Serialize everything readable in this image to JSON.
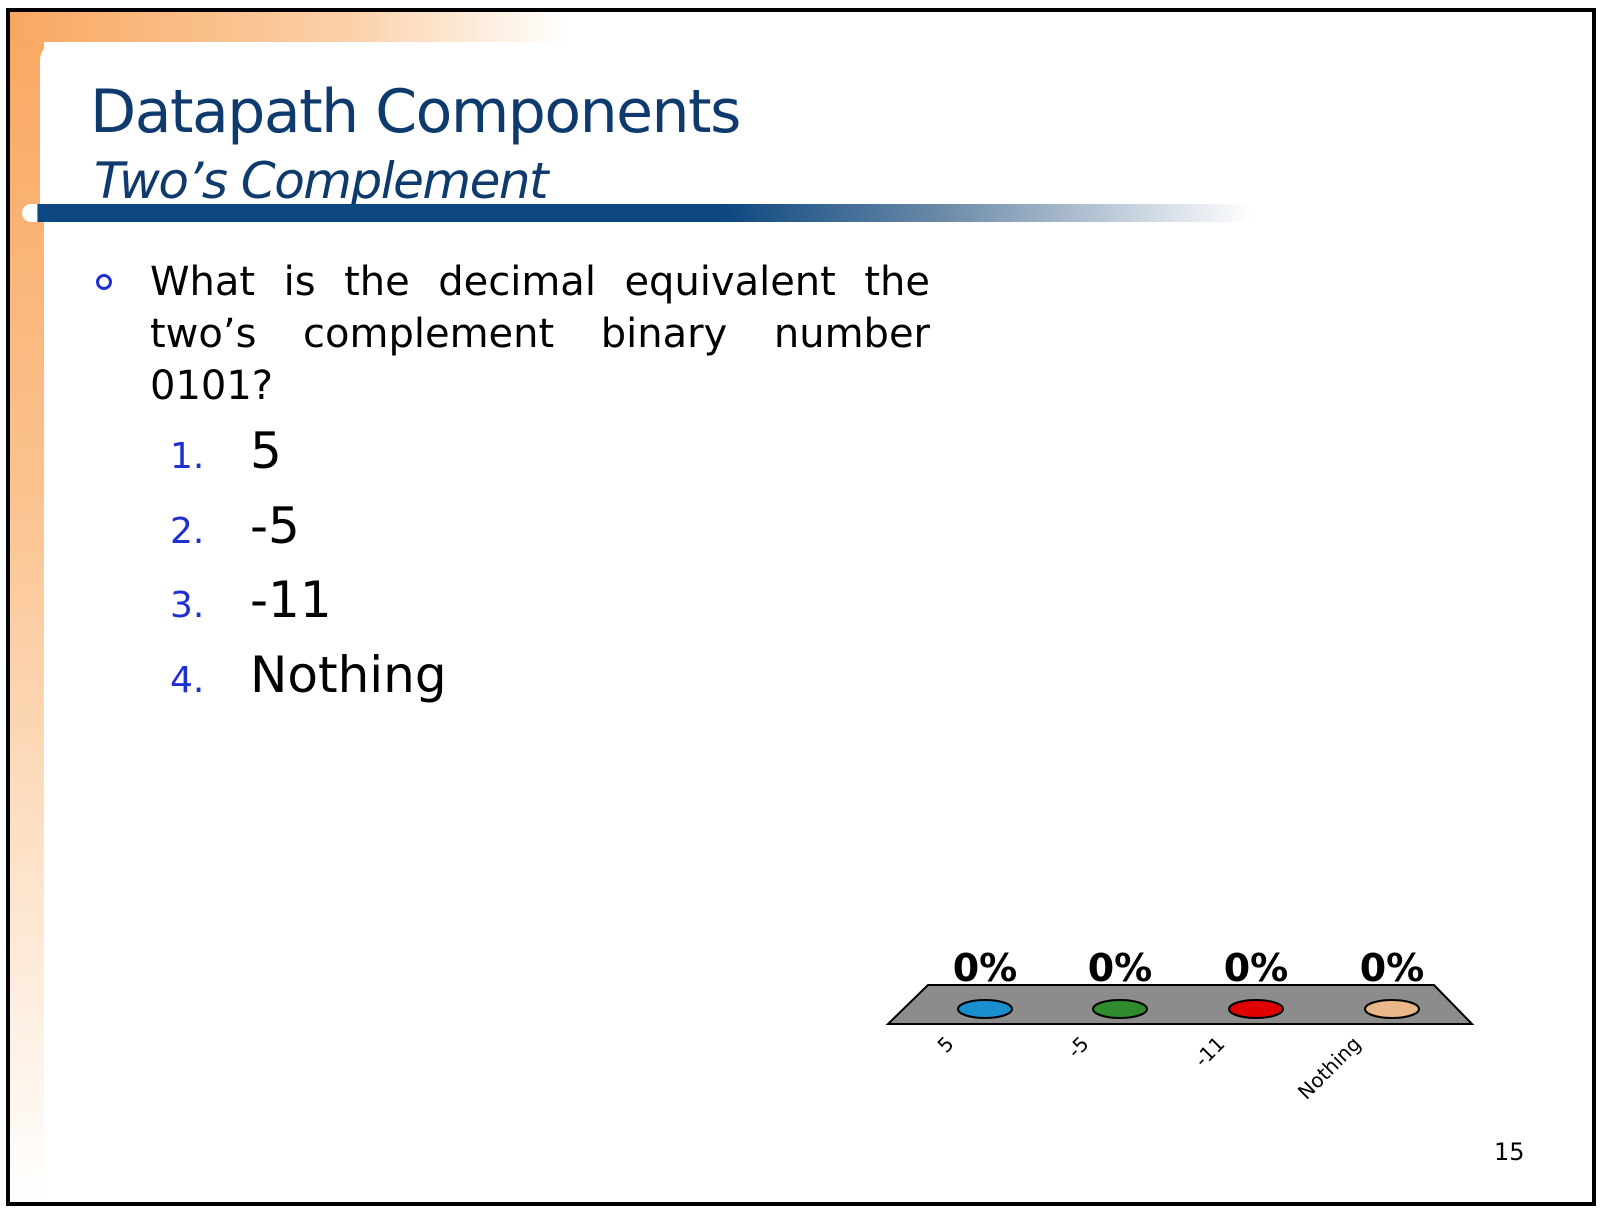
{
  "slide": {
    "title": "Datapath Components",
    "subtitle": "Two’s Complement",
    "question": "What is the decimal equivalent the two’s complement binary number 0101?",
    "options": [
      {
        "number": "1.",
        "text": "5"
      },
      {
        "number": "2.",
        "text": "-5"
      },
      {
        "number": "3.",
        "text": "-11"
      },
      {
        "number": "4.",
        "text": "Nothing"
      }
    ],
    "slide_number": "15"
  },
  "chart_data": {
    "type": "bar",
    "categories": [
      "5",
      "-5",
      "-11",
      "Nothing"
    ],
    "values": [
      0,
      0,
      0,
      0
    ],
    "value_labels": [
      "0%",
      "0%",
      "0%",
      "0%"
    ],
    "colors": [
      "#1a8fd0",
      "#2e8b2e",
      "#e00000",
      "#e8b88a"
    ],
    "platform_color": "#8c8c8c",
    "ylim": [
      0,
      100
    ],
    "xlabel": "",
    "ylabel": "",
    "grid": false,
    "legend": "none"
  }
}
